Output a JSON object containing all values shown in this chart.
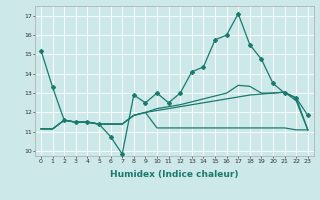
{
  "xlabel": "Humidex (Indice chaleur)",
  "bg_color": "#cce8e8",
  "grid_color": "#ffffff",
  "line_color": "#1a7a6e",
  "xlim": [
    -0.5,
    23.5
  ],
  "ylim": [
    9.75,
    17.5
  ],
  "yticks": [
    10,
    11,
    12,
    13,
    14,
    15,
    16,
    17
  ],
  "xticks": [
    0,
    1,
    2,
    3,
    4,
    5,
    6,
    7,
    8,
    9,
    10,
    11,
    12,
    13,
    14,
    15,
    16,
    17,
    18,
    19,
    20,
    21,
    22,
    23
  ],
  "line1_y": [
    15.2,
    13.3,
    11.6,
    11.5,
    11.5,
    11.4,
    10.75,
    9.85,
    12.9,
    12.5,
    13.0,
    12.5,
    13.0,
    14.1,
    14.35,
    15.75,
    16.0,
    17.1,
    15.5,
    14.75,
    13.5,
    13.0,
    12.75,
    11.85
  ],
  "line2_y": [
    11.15,
    11.15,
    11.6,
    11.5,
    11.5,
    11.4,
    11.4,
    11.4,
    11.85,
    12.0,
    11.2,
    11.2,
    11.2,
    11.2,
    11.2,
    11.2,
    11.2,
    11.2,
    11.2,
    11.2,
    11.2,
    11.2,
    11.1,
    11.1
  ],
  "line3_y": [
    11.15,
    11.15,
    11.6,
    11.5,
    11.5,
    11.4,
    11.4,
    11.4,
    11.85,
    12.0,
    12.2,
    12.3,
    12.4,
    12.55,
    12.7,
    12.85,
    13.0,
    13.4,
    13.35,
    13.0,
    13.0,
    13.05,
    12.75,
    11.1
  ],
  "line4_y": [
    11.15,
    11.15,
    11.6,
    11.5,
    11.5,
    11.4,
    11.4,
    11.4,
    11.85,
    12.0,
    12.1,
    12.2,
    12.3,
    12.4,
    12.5,
    12.6,
    12.7,
    12.8,
    12.9,
    12.95,
    13.0,
    13.05,
    12.6,
    11.1
  ]
}
